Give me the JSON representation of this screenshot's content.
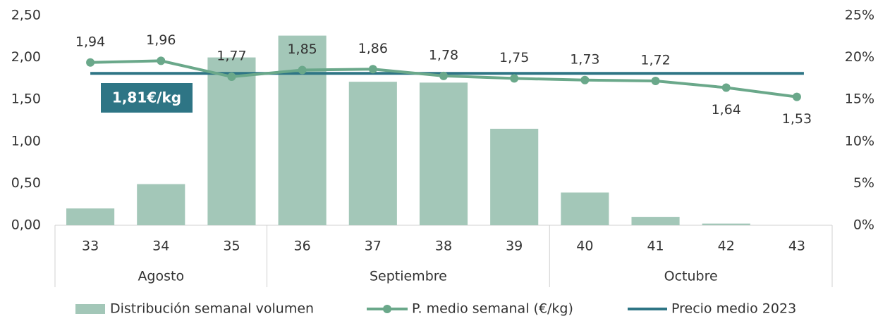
{
  "chart_data": {
    "type": "bar_line",
    "categories": [
      "33",
      "34",
      "35",
      "36",
      "37",
      "38",
      "39",
      "40",
      "41",
      "42",
      "43"
    ],
    "groups": [
      {
        "label": "Agosto",
        "size": 3
      },
      {
        "label": "Septiembre",
        "size": 4
      },
      {
        "label": "Octubre",
        "size": 4
      }
    ],
    "series": [
      {
        "name": "Distribución semanal volumen",
        "type": "bar",
        "axis": "y2",
        "color": "#a3c7b8",
        "values": [
          2,
          4.9,
          20,
          22.6,
          17.1,
          17,
          11.5,
          3.9,
          1,
          0.2,
          0
        ]
      },
      {
        "name": "P. medio semanal (€/kg)",
        "type": "line",
        "axis": "y",
        "color": "#6aa88a",
        "values": [
          1.94,
          1.96,
          1.77,
          1.85,
          1.86,
          1.78,
          1.75,
          1.73,
          1.72,
          1.64,
          1.53
        ],
        "value_labels": [
          "1,94",
          "1,96",
          "1,77",
          "1,85",
          "1,86",
          "1,78",
          "1,75",
          "1,73",
          "1,72",
          "1,64",
          "1,53"
        ]
      }
    ],
    "reference": {
      "name": "Precio medio 2023",
      "value": 1.81,
      "label": "1,81€/kg",
      "color": "#2e7585"
    },
    "ylim": [
      0,
      2.5
    ],
    "yticks": [
      {
        "value": 0,
        "label": "0,00"
      },
      {
        "value": 0.5,
        "label": "0,50"
      },
      {
        "value": 1,
        "label": "1,00"
      },
      {
        "value": 1.5,
        "label": "1,50"
      },
      {
        "value": 2,
        "label": "2,00"
      },
      {
        "value": 2.5,
        "label": "2,50"
      }
    ],
    "y2lim": [
      0,
      25
    ],
    "y2ticks": [
      {
        "value": 0,
        "label": "0%"
      },
      {
        "value": 5,
        "label": "5%"
      },
      {
        "value": 10,
        "label": "10%"
      },
      {
        "value": 15,
        "label": "15%"
      },
      {
        "value": 20,
        "label": "20%"
      },
      {
        "value": 25,
        "label": "25%"
      }
    ]
  }
}
